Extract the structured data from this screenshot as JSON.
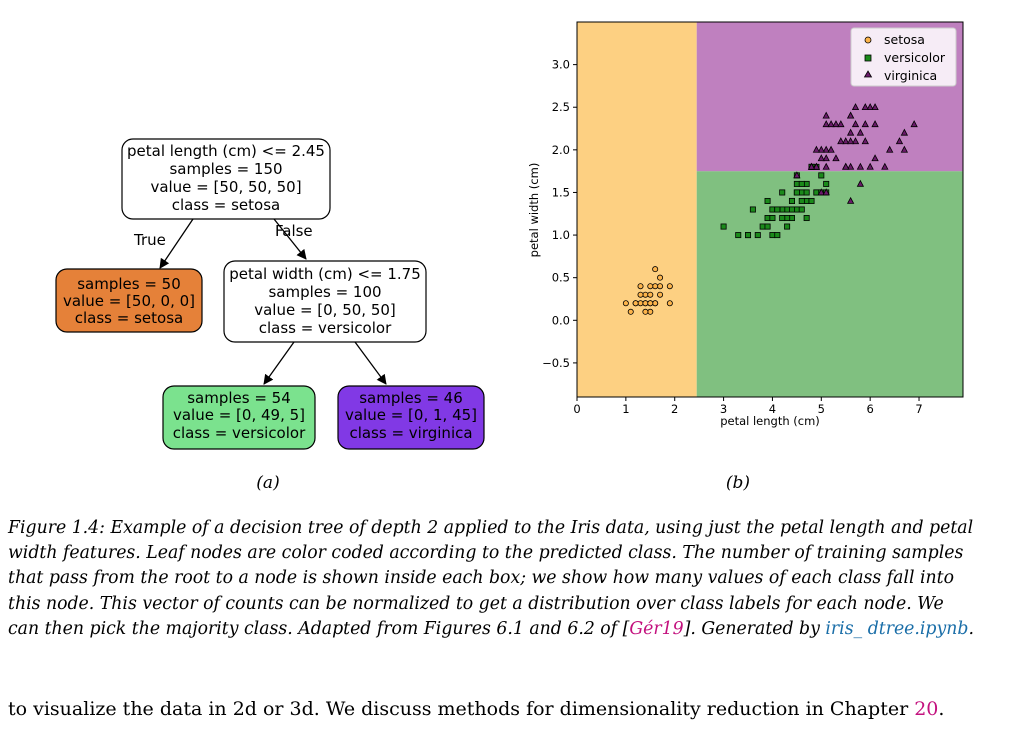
{
  "figure": {
    "panel_a_label": "(a)",
    "panel_b_label": "(b)",
    "tree": {
      "root": {
        "lines": [
          "petal length (cm) <= 2.45",
          "samples = 150",
          "value = [50, 50, 50]",
          "class = setosa"
        ],
        "fill": "#ffffff"
      },
      "edge_true": "True",
      "edge_false": "False",
      "leaf_setosa": {
        "lines": [
          "samples = 50",
          "value = [50, 0, 0]",
          "class = setosa"
        ],
        "fill": "#e58139"
      },
      "split2": {
        "lines": [
          "petal width (cm) <= 1.75",
          "samples = 100",
          "value = [0, 50, 50]",
          "class = versicolor"
        ],
        "fill": "#ffffff"
      },
      "leaf_versicolor": {
        "lines": [
          "samples = 54",
          "value = [0, 49, 5]",
          "class = versicolor"
        ],
        "fill": "#7be28e"
      },
      "leaf_virginica": {
        "lines": [
          "samples = 46",
          "value = [0, 1, 45]",
          "class = virginica"
        ],
        "fill": "#8139e5"
      }
    }
  },
  "chart_data": {
    "type": "scatter",
    "xlabel": "petal length (cm)",
    "ylabel": "petal width (cm)",
    "xlim": [
      0,
      7.9
    ],
    "ylim": [
      -0.9,
      3.5
    ],
    "xticks": [
      0,
      1,
      2,
      3,
      4,
      5,
      6,
      7
    ],
    "yticks": [
      -0.5,
      0.0,
      0.5,
      1.0,
      1.5,
      2.0,
      2.5,
      3.0
    ],
    "xtick_labels": [
      "0",
      "1",
      "2",
      "3",
      "4",
      "5",
      "6",
      "7"
    ],
    "ytick_labels": [
      "−0.5",
      "0.0",
      "0.5",
      "1.0",
      "1.5",
      "2.0",
      "2.5",
      "3.0"
    ],
    "grid": false,
    "legend_position": "top-right",
    "regions": [
      {
        "class": "setosa",
        "x_range": [
          0,
          2.45
        ],
        "y_range": [
          -0.9,
          3.5
        ],
        "color": "#fdd082"
      },
      {
        "class": "versicolor",
        "x_range": [
          2.45,
          7.9
        ],
        "y_range": [
          -0.9,
          1.75
        ],
        "color": "#80c080"
      },
      {
        "class": "virginica",
        "x_range": [
          2.45,
          7.9
        ],
        "y_range": [
          1.75,
          3.5
        ],
        "color": "#bf80bf"
      }
    ],
    "series": [
      {
        "name": "setosa",
        "marker": "circle",
        "color": "#fdb44b",
        "points": [
          [
            1.4,
            0.2
          ],
          [
            1.3,
            0.2
          ],
          [
            1.5,
            0.2
          ],
          [
            1.7,
            0.4
          ],
          [
            1.4,
            0.3
          ],
          [
            1.5,
            0.1
          ],
          [
            1.6,
            0.2
          ],
          [
            1.1,
            0.1
          ],
          [
            1.2,
            0.2
          ],
          [
            1.3,
            0.4
          ],
          [
            1.7,
            0.3
          ],
          [
            1.0,
            0.2
          ],
          [
            1.9,
            0.2
          ],
          [
            1.6,
            0.4
          ],
          [
            1.5,
            0.4
          ],
          [
            1.4,
            0.1
          ],
          [
            1.2,
            0.2
          ],
          [
            1.7,
            0.5
          ],
          [
            1.6,
            0.6
          ],
          [
            1.9,
            0.4
          ],
          [
            1.5,
            0.3
          ],
          [
            1.3,
            0.3
          ],
          [
            1.6,
            0.2
          ],
          [
            1.4,
            0.2
          ],
          [
            1.5,
            0.2
          ]
        ]
      },
      {
        "name": "versicolor",
        "marker": "square",
        "color": "#1a8a1a",
        "points": [
          [
            4.7,
            1.4
          ],
          [
            4.5,
            1.5
          ],
          [
            4.9,
            1.5
          ],
          [
            4.0,
            1.3
          ],
          [
            4.6,
            1.5
          ],
          [
            4.5,
            1.3
          ],
          [
            4.7,
            1.6
          ],
          [
            3.3,
            1.0
          ],
          [
            4.6,
            1.3
          ],
          [
            3.9,
            1.4
          ],
          [
            3.5,
            1.0
          ],
          [
            4.2,
            1.5
          ],
          [
            4.0,
            1.0
          ],
          [
            3.6,
            1.3
          ],
          [
            4.4,
            1.4
          ],
          [
            4.1,
            1.0
          ],
          [
            4.8,
            1.8
          ],
          [
            4.0,
            1.3
          ],
          [
            4.9,
            1.5
          ],
          [
            4.7,
            1.2
          ],
          [
            4.3,
            1.3
          ],
          [
            4.4,
            1.4
          ],
          [
            5.0,
            1.7
          ],
          [
            3.8,
            1.1
          ],
          [
            3.7,
            1.0
          ],
          [
            3.9,
            1.2
          ],
          [
            5.1,
            1.6
          ],
          [
            4.2,
            1.3
          ],
          [
            3.0,
            1.1
          ],
          [
            4.1,
            1.3
          ],
          [
            4.5,
            1.6
          ],
          [
            4.8,
            1.4
          ],
          [
            4.4,
            1.2
          ],
          [
            4.6,
            1.4
          ],
          [
            3.9,
            1.1
          ],
          [
            4.3,
            1.2
          ],
          [
            4.2,
            1.2
          ],
          [
            4.0,
            1.2
          ],
          [
            4.1,
            1.3
          ],
          [
            4.5,
            1.5
          ],
          [
            4.9,
            1.8
          ],
          [
            4.4,
            1.3
          ],
          [
            4.3,
            1.1
          ],
          [
            5.0,
            1.5
          ],
          [
            4.6,
            1.6
          ],
          [
            4.8,
            1.8
          ],
          [
            5.1,
            1.5
          ],
          [
            3.5,
            1.0
          ],
          [
            4.7,
            1.5
          ],
          [
            4.5,
            1.7
          ]
        ]
      },
      {
        "name": "virginica",
        "marker": "triangle",
        "color": "#6a1a6a",
        "points": [
          [
            6.0,
            2.5
          ],
          [
            5.1,
            1.9
          ],
          [
            5.9,
            2.1
          ],
          [
            5.6,
            1.8
          ],
          [
            5.8,
            2.2
          ],
          [
            6.6,
            2.1
          ],
          [
            4.5,
            1.7
          ],
          [
            6.3,
            1.8
          ],
          [
            5.8,
            1.8
          ],
          [
            6.1,
            2.5
          ],
          [
            5.1,
            2.0
          ],
          [
            5.3,
            1.9
          ],
          [
            5.5,
            2.1
          ],
          [
            5.0,
            2.0
          ],
          [
            5.1,
            2.4
          ],
          [
            5.3,
            2.3
          ],
          [
            5.5,
            1.8
          ],
          [
            6.7,
            2.2
          ],
          [
            6.9,
            2.3
          ],
          [
            5.0,
            1.5
          ],
          [
            5.7,
            2.3
          ],
          [
            4.9,
            2.0
          ],
          [
            6.7,
            2.0
          ],
          [
            4.9,
            1.8
          ],
          [
            5.7,
            2.1
          ],
          [
            6.0,
            1.8
          ],
          [
            4.8,
            1.8
          ],
          [
            4.9,
            1.8
          ],
          [
            5.6,
            2.1
          ],
          [
            5.8,
            1.6
          ],
          [
            6.1,
            1.9
          ],
          [
            6.4,
            2.0
          ],
          [
            5.6,
            2.2
          ],
          [
            5.1,
            1.5
          ],
          [
            5.6,
            1.4
          ],
          [
            6.1,
            2.3
          ],
          [
            5.6,
            2.4
          ],
          [
            5.5,
            1.8
          ],
          [
            4.8,
            1.8
          ],
          [
            5.4,
            2.1
          ],
          [
            5.6,
            2.4
          ],
          [
            5.1,
            2.3
          ],
          [
            5.9,
            2.3
          ],
          [
            5.7,
            2.5
          ],
          [
            5.2,
            2.3
          ],
          [
            5.0,
            1.9
          ],
          [
            5.2,
            2.0
          ],
          [
            5.4,
            2.3
          ],
          [
            5.1,
            1.8
          ],
          [
            5.9,
            2.5
          ]
        ]
      }
    ]
  },
  "caption": {
    "line1": "Figure 1.4: Example of a decision tree of depth 2 applied to the Iris data, using just the petal length and petal",
    "line2": "width features. Leaf nodes are color coded according to the predicted class. The number of training samples",
    "line3": "that pass from the root to a node is shown inside each box; we show how many values of each class fall into",
    "line4": "this node. This vector of counts can be normalized to get a distribution over class labels for each node. We",
    "line5_a": "can then pick the majority class. Adapted from Figures 6.1 and 6.2 of [",
    "line5_cite": "Gér19",
    "line5_b": "]. Generated by ",
    "line5_link": "iris_ dtree.ipynb",
    "line5_c": "."
  },
  "body": {
    "text_a": "to visualize the data in 2d or 3d. We discuss methods for dimensionality reduction in Chapter ",
    "chapter_ref": "20",
    "text_b": "."
  }
}
